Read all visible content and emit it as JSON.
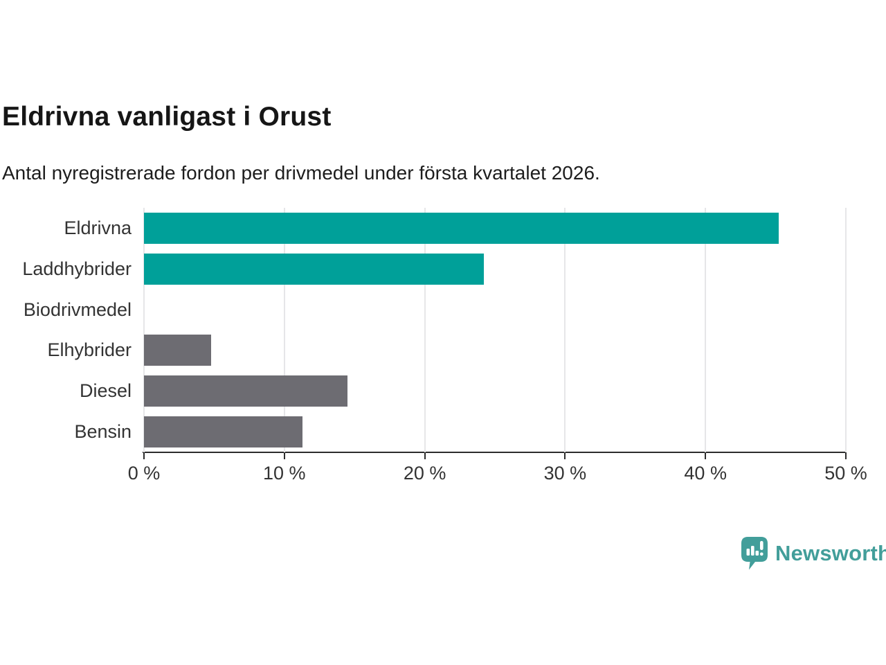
{
  "header": {
    "title": "Eldrivna vanligast i Orust",
    "subtitle": "Antal nyregistrerade fordon per drivmedel under första kvartalet 2026."
  },
  "chart_data": {
    "type": "bar",
    "orientation": "horizontal",
    "title": "Eldrivna vanligast i Orust",
    "subtitle": "Antal nyregistrerade fordon per drivmedel under första kvartalet 2026.",
    "categories": [
      "Eldrivna",
      "Laddhybrider",
      "Biodrivmedel",
      "Elhybrider",
      "Diesel",
      "Bensin"
    ],
    "values": [
      45.2,
      24.2,
      0,
      4.8,
      14.5,
      11.3
    ],
    "unit": "%",
    "xlim": [
      0,
      50
    ],
    "x_ticks": [
      0,
      10,
      20,
      30,
      40,
      50
    ],
    "x_tick_labels": [
      "0 %",
      "10 %",
      "20 %",
      "30 %",
      "40 %",
      "50 %"
    ],
    "grid": "vertical",
    "legend": "none",
    "bar_colors": [
      "#00a099",
      "#00a099",
      "#6d6c72",
      "#6d6c72",
      "#6d6c72",
      "#6d6c72"
    ],
    "colors": {
      "highlight": "#00a099",
      "default": "#6d6c72",
      "gridline": "#e6e6e8",
      "axis": "#2c2c2c",
      "label": "#333333"
    }
  },
  "footer": {
    "brand": "Newsworthy",
    "brand_color": "#429e9a"
  }
}
